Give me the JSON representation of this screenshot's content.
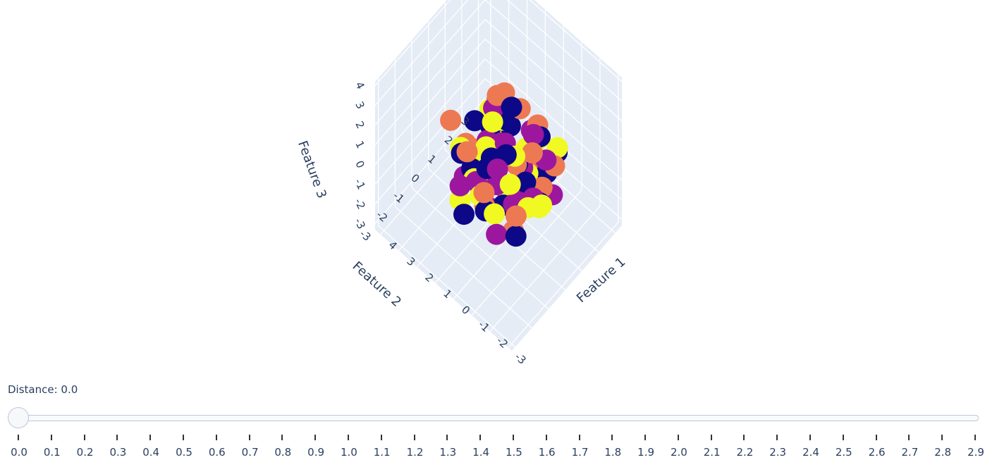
{
  "chart_data": {
    "type": "scatter3d",
    "axes": {
      "x": {
        "label": "Feature 1",
        "ticks": [
          "-3",
          "-2",
          "-1",
          "0",
          "1",
          "2",
          "3",
          "4"
        ],
        "range": [
          -3.2,
          4.3
        ]
      },
      "y": {
        "label": "Feature 2",
        "ticks": [
          "-3",
          "-2",
          "-1",
          "0",
          "1",
          "2",
          "3"
        ],
        "range": [
          -3.2,
          3.4
        ]
      },
      "z": {
        "label": "Feature 3",
        "ticks": [
          "-3",
          "-2",
          "-1",
          "0",
          "1",
          "2",
          "3",
          "4"
        ],
        "range": [
          -3.3,
          4.2
        ]
      }
    },
    "background": "#e5ecf6",
    "gridline_color": "#ffffff",
    "marker_size": "large",
    "clusters": [
      {
        "color": "#0d0887",
        "points": [
          [
            0.3,
            -0.6,
            1.1
          ],
          [
            -0.4,
            0.2,
            0.6
          ],
          [
            1.1,
            -0.9,
            0.2
          ],
          [
            -0.9,
            1.4,
            -0.6
          ],
          [
            0.6,
            0.7,
            1.5
          ],
          [
            -1.3,
            -0.3,
            0.9
          ],
          [
            1.5,
            0.4,
            -0.8
          ],
          [
            -0.2,
            -1.5,
            -0.3
          ],
          [
            0.9,
            1.2,
            0.5
          ],
          [
            -1.0,
            0.9,
            1.8
          ],
          [
            0.1,
            -0.1,
            -1.6
          ],
          [
            1.3,
            -1.3,
            1.2
          ],
          [
            -1.5,
            -1.1,
            -0.9
          ],
          [
            0.5,
            1.6,
            -1.2
          ],
          [
            -0.6,
            -0.7,
            2.1
          ],
          [
            0.2,
            0.5,
            2.7
          ],
          [
            1.7,
            0.9,
            0.1
          ],
          [
            -1.2,
            1.7,
            0.4
          ],
          [
            0.8,
            -1.7,
            -1.1
          ],
          [
            -0.3,
            1.1,
            -1.9
          ],
          [
            1.4,
            -0.4,
            1.9
          ],
          [
            -1.7,
            0.1,
            -0.2
          ],
          [
            0.0,
            -1.2,
            1.4
          ],
          [
            0.7,
            0.0,
            -0.5
          ]
        ]
      },
      {
        "color": "#9c179e",
        "points": [
          [
            -0.5,
            0.4,
            0.3
          ],
          [
            0.8,
            -0.3,
            1.3
          ],
          [
            -1.1,
            -0.8,
            0.1
          ],
          [
            1.2,
            1.0,
            -0.4
          ],
          [
            -0.2,
            1.5,
            1.0
          ],
          [
            0.4,
            -1.4,
            0.6
          ],
          [
            -1.6,
            0.6,
            1.4
          ],
          [
            1.6,
            -0.8,
            -0.7
          ],
          [
            0.1,
            0.9,
            -1.3
          ],
          [
            -0.8,
            -1.5,
            -1.0
          ],
          [
            1.0,
            0.3,
            2.2
          ],
          [
            -1.4,
            1.2,
            -1.1
          ],
          [
            0.6,
            -0.5,
            -1.7
          ],
          [
            -0.1,
            -0.2,
            1.8
          ],
          [
            1.8,
            1.3,
            0.8
          ],
          [
            -1.8,
            -0.4,
            0.6
          ],
          [
            0.3,
            1.8,
            0.2
          ],
          [
            -0.7,
            0.0,
            -0.6
          ],
          [
            1.1,
            -1.6,
            0.0
          ],
          [
            -1.0,
            0.5,
            2.3
          ],
          [
            0.5,
            0.6,
            -2.0
          ],
          [
            -0.4,
            -1.0,
            1.5
          ],
          [
            1.4,
            0.2,
            -1.4
          ],
          [
            0.0,
            -0.6,
            0.0
          ]
        ]
      },
      {
        "color": "#ed7953",
        "points": [
          [
            0.6,
            0.1,
            0.4
          ],
          [
            -0.7,
            -0.2,
            1.2
          ],
          [
            1.3,
            1.1,
            0.9
          ],
          [
            -1.2,
            0.8,
            -0.5
          ],
          [
            0.2,
            -1.1,
            -0.8
          ],
          [
            1.7,
            -0.6,
            0.7
          ],
          [
            -0.5,
            1.3,
            1.6
          ],
          [
            0.9,
            -1.4,
            1.7
          ],
          [
            -1.6,
            -1.2,
            0.3
          ],
          [
            0.4,
            0.4,
            -1.5
          ],
          [
            -0.1,
            1.7,
            -0.9
          ],
          [
            1.1,
            0.6,
            -1.2
          ],
          [
            -1.3,
            0.1,
            2.0
          ],
          [
            0.7,
            -0.9,
            -0.1
          ],
          [
            2.9,
            -0.2,
            0.5
          ],
          [
            -0.9,
            -0.6,
            -1.6
          ],
          [
            0.0,
            0.8,
            2.5
          ],
          [
            1.5,
            1.5,
            1.4
          ],
          [
            -0.3,
            -1.7,
            0.9
          ],
          [
            0.8,
            0.3,
            3.0
          ],
          [
            -1.7,
            1.0,
            0.8
          ],
          [
            1.9,
            0.0,
            -0.3
          ]
        ]
      },
      {
        "color": "#f0f921",
        "points": [
          [
            0.1,
            -0.3,
            0.7
          ],
          [
            -0.6,
            0.6,
            -0.1
          ],
          [
            1.0,
            0.8,
            1.1
          ],
          [
            -1.1,
            -1.0,
            1.3
          ],
          [
            0.7,
            -1.2,
            0.3
          ],
          [
            -0.3,
            1.4,
            0.5
          ],
          [
            1.4,
            -0.1,
            -0.6
          ],
          [
            -1.5,
            0.3,
            -0.8
          ],
          [
            0.3,
            0.2,
            -1.1
          ],
          [
            -0.8,
            -0.4,
            1.9
          ],
          [
            1.6,
            1.2,
            -0.2
          ],
          [
            0.5,
            -0.7,
            1.6
          ],
          [
            -0.2,
            1.0,
            -1.4
          ],
          [
            1.2,
            -1.5,
            -0.9
          ],
          [
            -1.4,
            1.5,
            1.0
          ],
          [
            0.9,
            0.5,
            0.0
          ],
          [
            -3.0,
            -1.2,
            2.0
          ],
          [
            0.0,
            -1.6,
            0.4
          ],
          [
            1.8,
            -0.8,
            0.6
          ],
          [
            -0.9,
            0.9,
            1.6
          ],
          [
            0.4,
            1.6,
            -0.6
          ],
          [
            -0.5,
            -1.3,
            -0.4
          ],
          [
            1.3,
            0.4,
            1.8
          ],
          [
            -1.8,
            -0.7,
            0.4
          ],
          [
            0.6,
            -0.2,
            2.3
          ],
          [
            -0.1,
            0.4,
            -1.8
          ]
        ]
      }
    ]
  },
  "slider": {
    "readout": "Distance: 0.0",
    "value": 0.0,
    "steps": [
      "0.0",
      "0.1",
      "0.2",
      "0.3",
      "0.4",
      "0.5",
      "0.6",
      "0.7",
      "0.8",
      "0.9",
      "1.0",
      "1.1",
      "1.2",
      "1.3",
      "1.4",
      "1.5",
      "1.6",
      "1.7",
      "1.8",
      "1.9",
      "2.0",
      "2.1",
      "2.2",
      "2.3",
      "2.4",
      "2.5",
      "2.6",
      "2.7",
      "2.8",
      "2.9"
    ]
  }
}
